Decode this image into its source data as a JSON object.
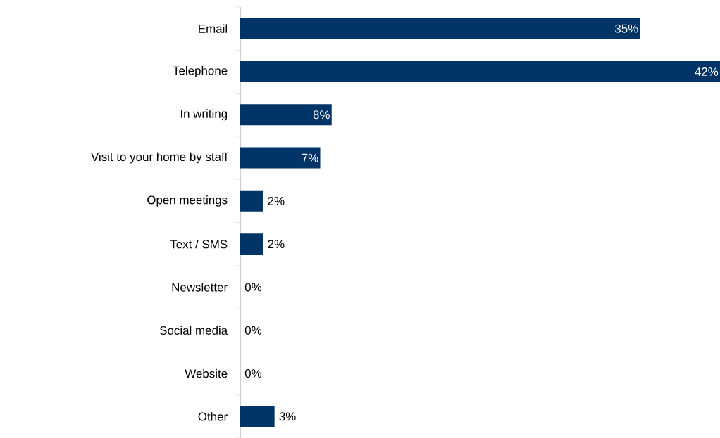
{
  "chart_data": {
    "type": "bar",
    "orientation": "horizontal",
    "categories": [
      "Email",
      "Telephone",
      "In writing",
      "Visit to your home by staff",
      "Open meetings",
      "Text / SMS",
      "Newsletter",
      "Social media",
      "Website",
      "Other"
    ],
    "values": [
      35,
      42,
      8,
      7,
      2,
      2,
      0,
      0,
      0,
      3
    ],
    "color": "#003366",
    "data_labels": true,
    "value_labels": [
      "35%",
      "42%",
      "8%",
      "7%",
      "2%",
      "2%",
      "0%",
      "0%",
      "0%",
      "3%"
    ]
  }
}
